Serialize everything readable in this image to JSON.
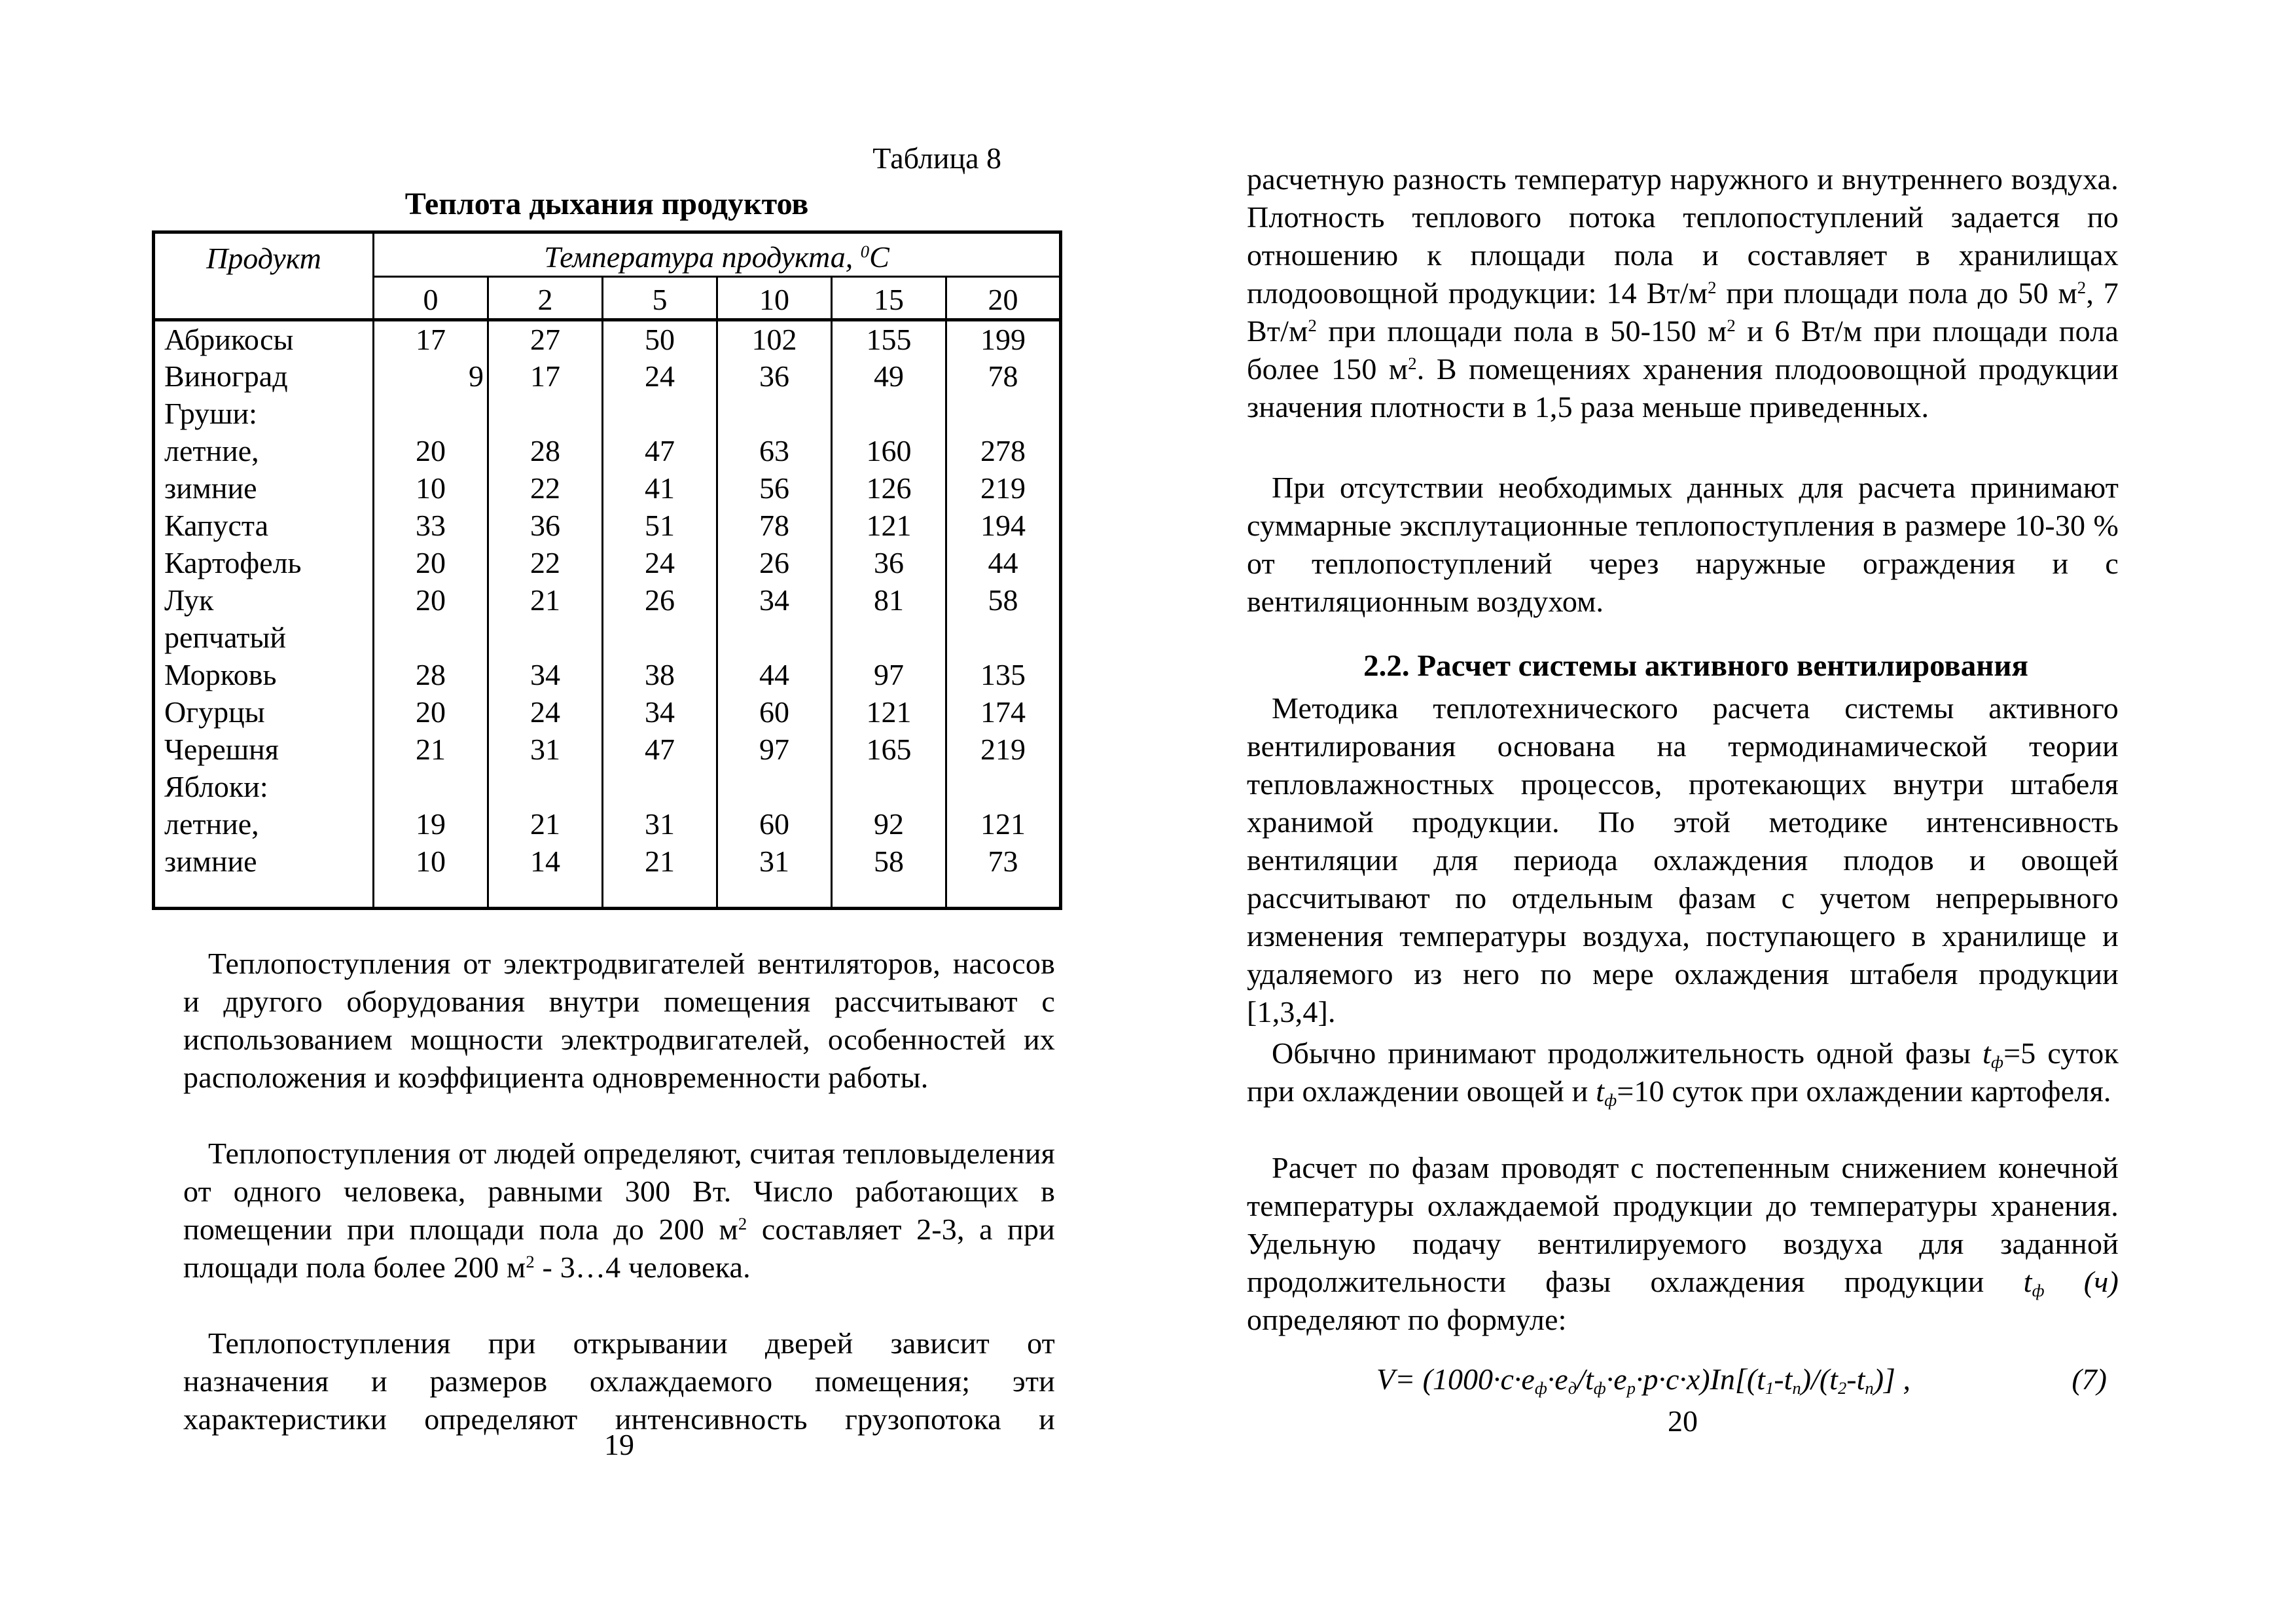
{
  "left_page": {
    "table_label": "Таблица 8",
    "table_title": "Теплота дыхания продуктов",
    "table": {
      "product_header": "Продукт",
      "temp_header": [
        {
          "t": "Температура продукта, "
        },
        {
          "t": "0",
          "m": "sup"
        },
        {
          "t": "С"
        }
      ],
      "columns": [
        "0",
        "2",
        "5",
        "10",
        "15",
        "20"
      ],
      "rows": [
        {
          "label": "Абрикосы",
          "values": [
            "17",
            "27",
            "50",
            "102",
            "155",
            "199"
          ]
        },
        {
          "label": "Виноград",
          "values": [
            "9",
            "17",
            "24",
            "36",
            "49",
            "78"
          ],
          "first_value_right": true
        },
        {
          "label": "Груши:",
          "values": [
            "",
            "",
            "",
            "",
            "",
            ""
          ]
        },
        {
          "label": "летние,",
          "values": [
            "20",
            "28",
            "47",
            "63",
            "160",
            "278"
          ]
        },
        {
          "label": "зимние",
          "values": [
            "10",
            "22",
            "41",
            "56",
            "126",
            "219"
          ]
        },
        {
          "label": "Капуста",
          "values": [
            "33",
            "36",
            "51",
            "78",
            "121",
            "194"
          ]
        },
        {
          "label": "Картофель",
          "values": [
            "20",
            "22",
            "24",
            "26",
            "36",
            "44"
          ]
        },
        {
          "label": "Лук",
          "values": [
            "20",
            "21",
            "26",
            "34",
            "81",
            "58"
          ]
        },
        {
          "label": "репчатый",
          "values": [
            "",
            "",
            "",
            "",
            "",
            ""
          ]
        },
        {
          "label": "Морковь",
          "values": [
            "28",
            "34",
            "38",
            "44",
            "97",
            "135"
          ]
        },
        {
          "label": "Огурцы",
          "values": [
            "20",
            "24",
            "34",
            "60",
            "121",
            "174"
          ]
        },
        {
          "label": "Черешня",
          "values": [
            "21",
            "31",
            "47",
            "97",
            "165",
            "219"
          ]
        },
        {
          "label": "Яблоки:",
          "values": [
            "",
            "",
            "",
            "",
            "",
            ""
          ]
        },
        {
          "label": "летние,",
          "values": [
            "19",
            "21",
            "31",
            "60",
            "92",
            "121"
          ]
        },
        {
          "label": "зимние",
          "values": [
            "10",
            "14",
            "21",
            "31",
            "58",
            "73"
          ]
        }
      ]
    },
    "paragraph_1": [
      {
        "t": "Теплопоступления от электродвигателей вентиляторов, насосов и другого оборудования внутри помещения рассчитывают с использованием мощности электродвигателей, особенностей их расположения и коэффициента одновременности работы."
      }
    ],
    "paragraph_2": [
      {
        "t": "Теплопоступления от людей определяют, считая тепловыделения от одного человека, равными 300 Вт. Число работающих в помещении при площади пола до 200 м"
      },
      {
        "t": "2",
        "m": "sup"
      },
      {
        "t": " составляет 2-3, а при площади пола более 200 м"
      },
      {
        "t": "2",
        "m": "sup"
      },
      {
        "t": " - 3…4 человека."
      }
    ],
    "paragraph_3": [
      {
        "t": "Теплопоступления при открывании дверей зависит от назначения и размеров охлаждаемого помещения; эти характеристики определяют интенсивность грузопотока и"
      }
    ],
    "page_number": "19"
  },
  "right_page": {
    "paragraph_1": [
      {
        "t": "расчетную разность температур наружного и внутреннего воздуха. Плотность теплового потока теплопоступлений задается по отношению к площади пола и составляет в хранилищах плодоовощной продукции: 14 Вт/м"
      },
      {
        "t": "2",
        "m": "sup"
      },
      {
        "t": " при площади пола до 50 м"
      },
      {
        "t": "2",
        "m": "sup"
      },
      {
        "t": ", 7 Вт/м"
      },
      {
        "t": "2",
        "m": "sup"
      },
      {
        "t": " при площади пола в 50-150 м"
      },
      {
        "t": "2",
        "m": "sup"
      },
      {
        "t": " и 6 Вт/м при площади пола более 150 м"
      },
      {
        "t": "2",
        "m": "sup"
      },
      {
        "t": ". В помещениях хранения плодоовощной продукции значения плотности в 1,5 раза меньше приведенных."
      }
    ],
    "paragraph_2": [
      {
        "t": "При отсутствии необходимых данных для расчета принимают суммарные эксплутационные теплопоступления в размере 10-30 % от теплопоступлений через наружные ограждения и с вентиляционным воздухом."
      }
    ],
    "section_heading": "2.2. Расчет системы активного вентилирования",
    "paragraph_3": [
      {
        "t": "Методика теплотехнического расчета системы активного вентилирования основана на термодинамической теории тепловлажностных процессов, протекающих внутри штабеля хранимой продукции. По этой методике интенсивность вентиляции для периода охлаждения плодов и овощей рассчитывают по отдельным фазам с учетом непрерывного изменения температуры воздуха, поступающего в хранилище и удаляемого из него по мере охлаждения штабеля продукции [1,3,4]."
      }
    ],
    "paragraph_4": [
      {
        "t": "Обычно принимают продолжительность одной фазы "
      },
      {
        "t": "t",
        "m": "i"
      },
      {
        "t": "ф",
        "m": "isub"
      },
      {
        "t": "=5 суток при охлаждении овощей и "
      },
      {
        "t": "t",
        "m": "i"
      },
      {
        "t": "ф",
        "m": "isub"
      },
      {
        "t": "=10 суток при охлаждении картофеля."
      }
    ],
    "paragraph_5": [
      {
        "t": "Расчет по фазам проводят с постепенным снижением конечной температуры охлаждаемой продукции до температуры хранения. Удельную подачу вентилируемого воздуха для заданной продолжительности фазы охлаждения продукции "
      },
      {
        "t": "t",
        "m": "i"
      },
      {
        "t": "ф",
        "m": "isub"
      },
      {
        "t": " ",
        "m": "i"
      },
      {
        "t": "(ч)",
        "m": "i"
      },
      {
        "t": " определяют по формуле:"
      }
    ],
    "formula": {
      "body": [
        {
          "t": "V= (1000·c·e"
        },
        {
          "t": "ф",
          "m": "sub"
        },
        {
          "t": "·e"
        },
        {
          "t": "д",
          "m": "sub"
        },
        {
          "t": "/t"
        },
        {
          "t": "ф",
          "m": "sub"
        },
        {
          "t": "·e"
        },
        {
          "t": "р",
          "m": "sub"
        },
        {
          "t": "·p·c·x)In[(t"
        },
        {
          "t": "1",
          "m": "sub"
        },
        {
          "t": "-t"
        },
        {
          "t": "п",
          "m": "sub"
        },
        {
          "t": ")/(t"
        },
        {
          "t": "2",
          "m": "sub"
        },
        {
          "t": "-t"
        },
        {
          "t": "п",
          "m": "sub"
        },
        {
          "t": ")] ,"
        }
      ],
      "number": "(7)"
    },
    "page_number": "20"
  }
}
